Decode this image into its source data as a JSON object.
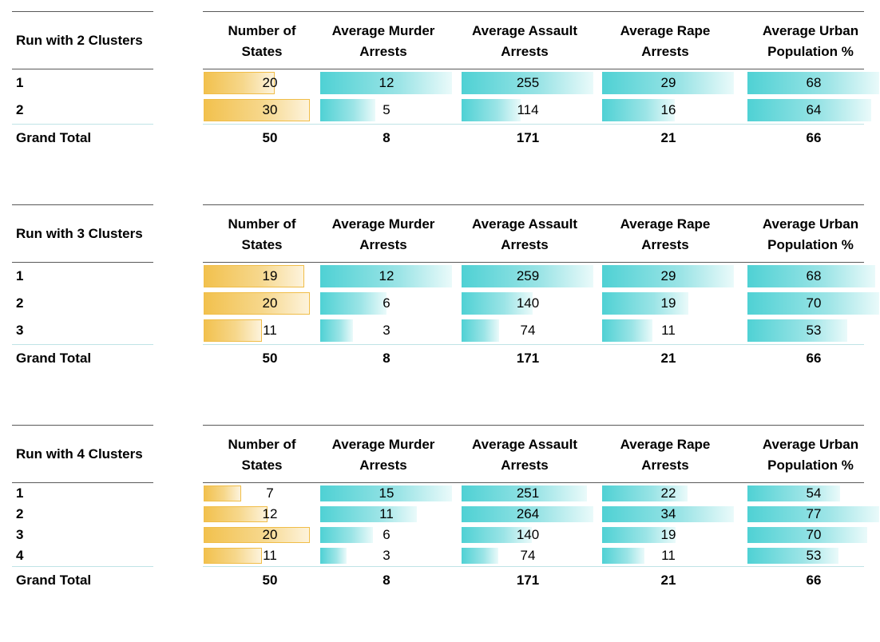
{
  "headers": [
    "Number of\nStates",
    "Average Murder\nArrests",
    "Average Assault\nArrests",
    "Average Rape\nArrests",
    "Average Urban\nPopulation %"
  ],
  "pivots": [
    {
      "title": "Run with 2 Clusters",
      "rows": [
        {
          "label": "1",
          "values": [
            "20",
            "12",
            "255",
            "29",
            "68"
          ]
        },
        {
          "label": "2",
          "values": [
            "30",
            "5",
            "114",
            "16",
            "64"
          ]
        }
      ],
      "total": {
        "label": "Grand Total",
        "values": [
          "50",
          "8",
          "171",
          "21",
          "66"
        ]
      }
    },
    {
      "title": "Run with 3 Clusters",
      "rows": [
        {
          "label": "1",
          "values": [
            "19",
            "12",
            "259",
            "29",
            "68"
          ]
        },
        {
          "label": "2",
          "values": [
            "20",
            "6",
            "140",
            "19",
            "70"
          ]
        },
        {
          "label": "3",
          "values": [
            "11",
            "3",
            "74",
            "11",
            "53"
          ]
        }
      ],
      "total": {
        "label": "Grand Total",
        "values": [
          "50",
          "8",
          "171",
          "21",
          "66"
        ]
      }
    },
    {
      "title": "Run with 4 Clusters",
      "rows": [
        {
          "label": "1",
          "values": [
            "7",
            "15",
            "251",
            "22",
            "54"
          ]
        },
        {
          "label": "2",
          "values": [
            "12",
            "11",
            "264",
            "34",
            "77"
          ]
        },
        {
          "label": "3",
          "values": [
            "20",
            "6",
            "140",
            "19",
            "70"
          ]
        },
        {
          "label": "4",
          "values": [
            "11",
            "3",
            "74",
            "11",
            "53"
          ]
        }
      ],
      "total": {
        "label": "Grand Total",
        "values": [
          "50",
          "8",
          "171",
          "21",
          "66"
        ]
      }
    }
  ],
  "colors": {
    "count_bar": "#f2c14e",
    "metric_bar": "#4fd1d4",
    "rule": "#595959",
    "row_separator": "#bfe4e6"
  }
}
